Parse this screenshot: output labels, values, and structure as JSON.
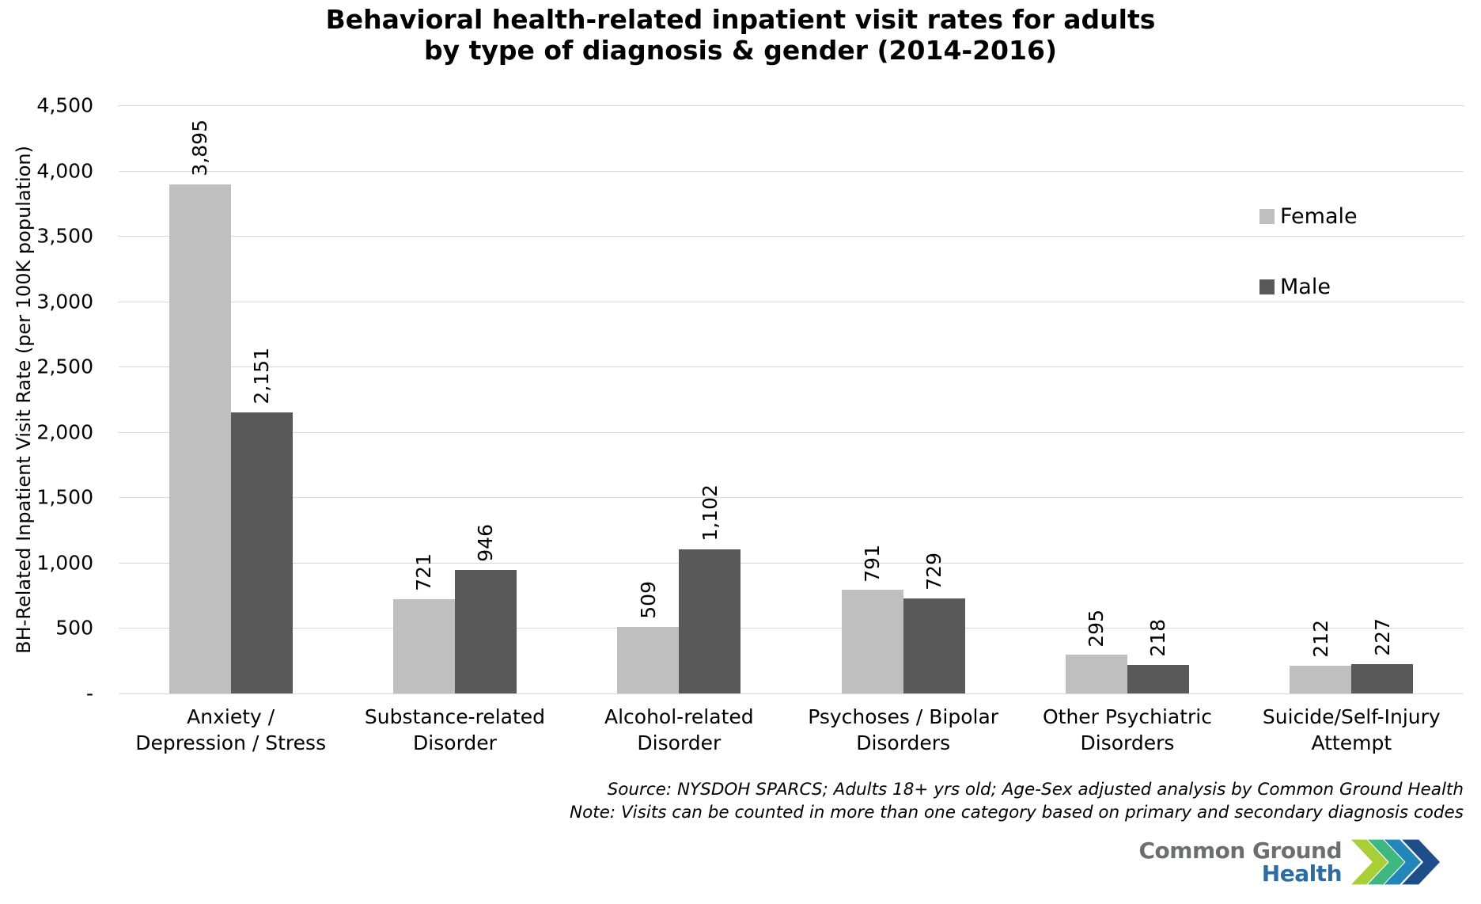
{
  "title": {
    "line1": "Behavioral health-related inpatient visit rates for adults",
    "line2": "by type of diagnosis & gender (2014-2016)"
  },
  "y_axis_label": "BH-Related Inpatient Visit Rate (per 100K population)",
  "legend": {
    "items": [
      {
        "label": "Female",
        "color": "#bfbfbf"
      },
      {
        "label": "Male",
        "color": "#595959"
      }
    ]
  },
  "footnote": {
    "line1": "Source: NYSDOH SPARCS; Adults 18+ yrs old; Age-Sex adjusted analysis by Common Ground Health",
    "line2": "Note: Visits can be counted in more than one category based on primary and secondary diagnosis codes"
  },
  "logo": {
    "line1": "Common Ground",
    "line2": "Health",
    "line1_color": "#6d6e71",
    "line2_color": "#2d6ca2",
    "chevron_colors": [
      "#a9cf38",
      "#3eb780",
      "#2286b9",
      "#1d4e89"
    ]
  },
  "chart_data": {
    "type": "bar",
    "title": "Behavioral health-related inpatient visit rates for adults by type of diagnosis & gender (2014-2016)",
    "xlabel": "",
    "ylabel": "BH-Related Inpatient Visit Rate (per 100K population)",
    "ylim": [
      0,
      4500
    ],
    "grid": true,
    "legend_position": "upper-right",
    "categories": [
      "Anxiety / Depression / Stress",
      "Substance-related Disorder",
      "Alcohol-related Disorder",
      "Psychoses / Bipolar Disorders",
      "Other Psychiatric Disorders",
      "Suicide/Self-Injury Attempt"
    ],
    "series": [
      {
        "name": "Female",
        "color": "#bfbfbf",
        "values": [
          3895,
          721,
          509,
          791,
          295,
          212
        ],
        "labels": [
          "3,895",
          "721",
          "509",
          "791",
          "295",
          "212"
        ]
      },
      {
        "name": "Male",
        "color": "#595959",
        "values": [
          2151,
          946,
          1102,
          729,
          218,
          227
        ],
        "labels": [
          "2,151",
          "946",
          "1,102",
          "729",
          "218",
          "227"
        ]
      }
    ],
    "y_ticks": [
      {
        "label": "-",
        "value": 0
      },
      {
        "label": "500",
        "value": 500
      },
      {
        "label": "1,000",
        "value": 1000
      },
      {
        "label": "1,500",
        "value": 1500
      },
      {
        "label": "2,000",
        "value": 2000
      },
      {
        "label": "2,500",
        "value": 2500
      },
      {
        "label": "3,000",
        "value": 3000
      },
      {
        "label": "3,500",
        "value": 3500
      },
      {
        "label": "4,000",
        "value": 4000
      },
      {
        "label": "4,500",
        "value": 4500
      }
    ]
  }
}
